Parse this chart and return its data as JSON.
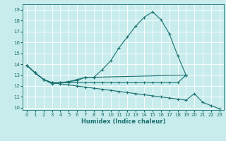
{
  "title": "",
  "xlabel": "Humidex (Indice chaleur)",
  "bg_color": "#c8ecec",
  "grid_color": "#ffffff",
  "line_color": "#1a7070",
  "xlim": [
    -0.5,
    23.5
  ],
  "ylim": [
    9.8,
    19.5
  ],
  "xticks": [
    0,
    1,
    2,
    3,
    4,
    5,
    6,
    7,
    8,
    9,
    10,
    11,
    12,
    13,
    14,
    15,
    16,
    17,
    18,
    19,
    20,
    21,
    22,
    23
  ],
  "yticks": [
    10,
    11,
    12,
    13,
    14,
    15,
    16,
    17,
    18,
    19
  ],
  "s0_x": [
    0,
    1,
    2,
    3,
    4,
    5,
    6,
    7,
    8,
    9,
    10,
    11,
    12,
    13,
    14,
    15,
    16,
    17,
    18,
    19
  ],
  "s0_y": [
    13.9,
    13.2,
    12.6,
    12.3,
    12.3,
    12.4,
    12.5,
    12.8,
    12.8,
    13.5,
    14.3,
    15.5,
    16.5,
    17.5,
    18.3,
    18.8,
    18.1,
    16.8,
    14.8,
    13.0
  ],
  "s1_x": [
    0,
    1,
    2,
    3,
    4,
    5,
    6,
    7,
    8,
    19
  ],
  "s1_y": [
    13.9,
    13.2,
    12.6,
    12.2,
    12.3,
    12.4,
    12.6,
    12.8,
    12.8,
    13.0
  ],
  "s2_x": [
    0,
    1,
    2,
    3,
    4,
    5,
    6,
    7,
    8,
    9,
    10,
    11,
    12,
    13,
    14,
    15,
    16,
    17,
    18,
    19,
    20,
    21,
    22,
    23
  ],
  "s2_y": [
    13.9,
    13.2,
    12.6,
    12.3,
    12.2,
    12.1,
    12.0,
    11.9,
    11.8,
    11.7,
    11.6,
    11.5,
    11.4,
    11.3,
    11.2,
    11.1,
    11.0,
    10.9,
    10.8,
    10.7,
    11.3,
    10.5,
    10.2,
    9.9
  ],
  "s3_x": [
    0,
    1,
    2,
    3,
    4,
    5,
    6,
    7,
    8,
    9,
    10,
    11,
    12,
    13,
    14,
    15,
    16,
    17,
    18,
    19
  ],
  "s3_y": [
    13.9,
    13.2,
    12.6,
    12.3,
    12.3,
    12.3,
    12.3,
    12.3,
    12.3,
    12.3,
    12.3,
    12.3,
    12.3,
    12.3,
    12.3,
    12.3,
    12.3,
    12.3,
    12.3,
    13.0
  ],
  "tick_fontsize": 5.0,
  "xlabel_fontsize": 6.0
}
